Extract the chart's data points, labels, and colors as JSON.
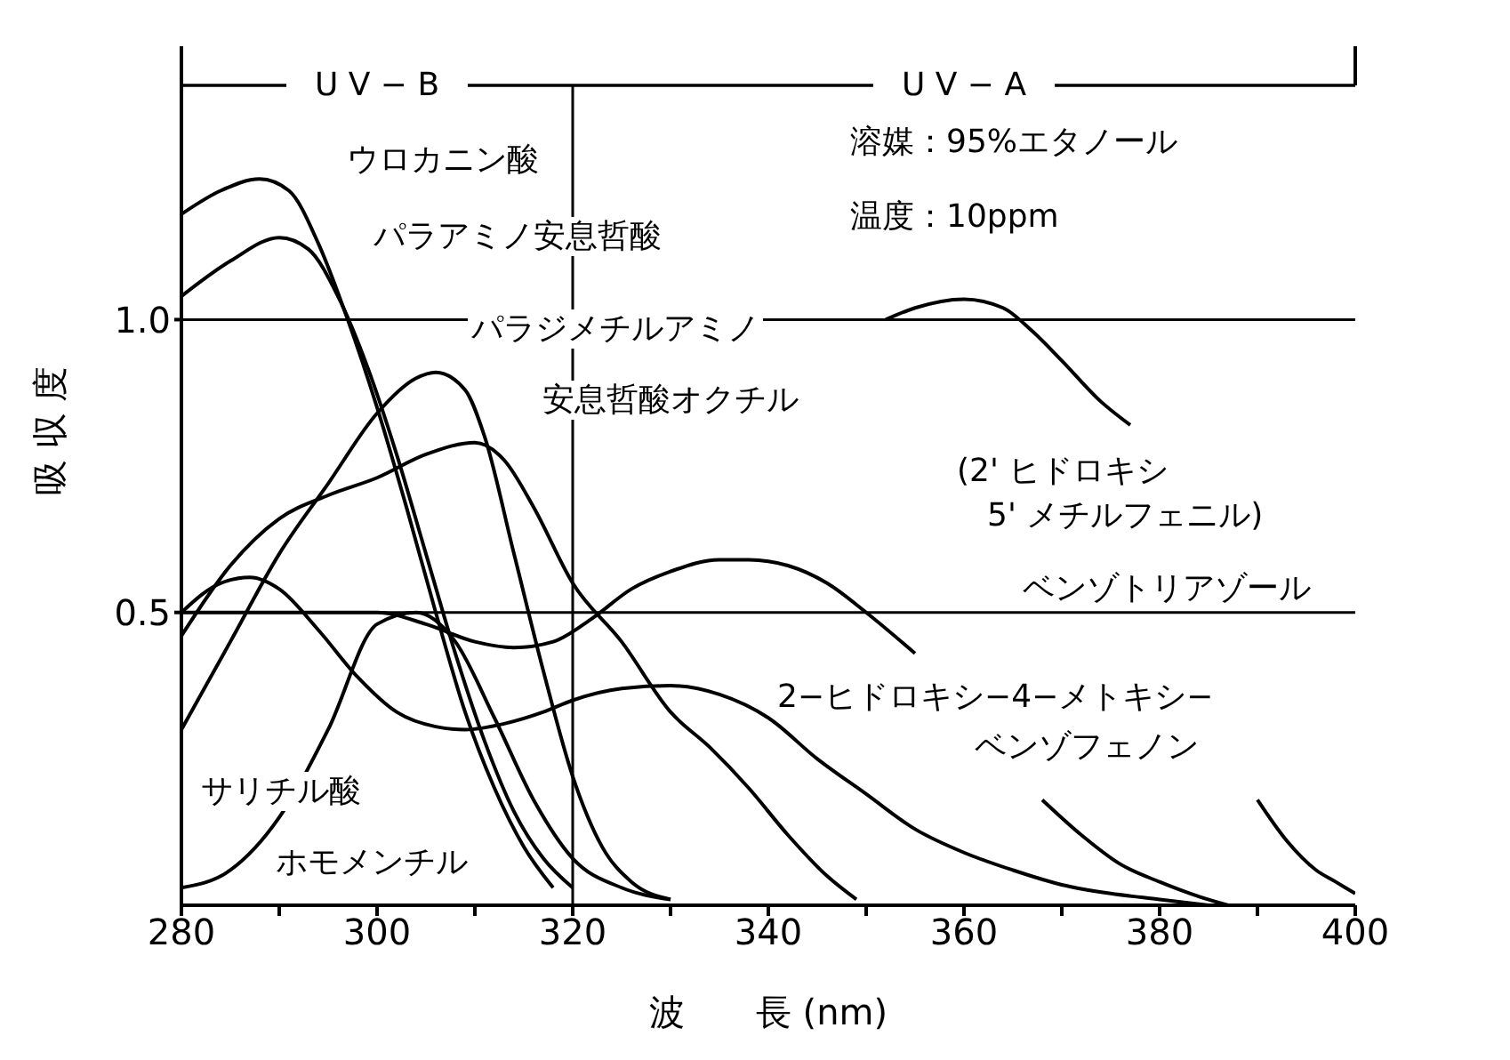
{
  "chart_data": {
    "type": "line",
    "xlabel": "波　　長 (nm)",
    "ylabel": "吸 収 度",
    "xlim": [
      280,
      400
    ],
    "ylim": [
      0,
      1.4
    ],
    "xticks": [
      280,
      {
        "value": 290,
        "label": null
      },
      300,
      {
        "value": 310,
        "label": null
      },
      320,
      {
        "value": 330,
        "label": null
      },
      340,
      {
        "value": 350,
        "label": null
      },
      360,
      {
        "value": 370,
        "label": null
      },
      380,
      {
        "value": 390,
        "label": null
      },
      400
    ],
    "yticks": [
      {
        "value": 0.5,
        "label": "0.5"
      },
      {
        "value": 1,
        "label": "1.0"
      }
    ],
    "grid": "y",
    "legend": false,
    "marker": "none",
    "line_style": "solid",
    "ref_lines": [
      {
        "axis": "x",
        "value": 320,
        "color": "#000000"
      }
    ],
    "series": [
      {
        "color": "#000000",
        "x": [
          280,
          284,
          288,
          291,
          294,
          297,
          300,
          303,
          306,
          309,
          312,
          315,
          318
        ],
        "values": [
          1.18,
          1.22,
          1.24,
          1.22,
          1.13,
          1.0,
          0.85,
          0.68,
          0.5,
          0.33,
          0.2,
          0.1,
          0.03
        ]
      },
      {
        "color": "#000000",
        "x": [
          280,
          285,
          290,
          293,
          296,
          299,
          302,
          305,
          308,
          311,
          314,
          317,
          320
        ],
        "values": [
          1.04,
          1.1,
          1.14,
          1.12,
          1.04,
          0.92,
          0.77,
          0.6,
          0.43,
          0.28,
          0.16,
          0.08,
          0.03
        ]
      },
      {
        "color": "#000000",
        "x": [
          280,
          285,
          290,
          295,
          300,
          304,
          306,
          309,
          311,
          314,
          317,
          320,
          323,
          326,
          330
        ],
        "values": [
          0.3,
          0.45,
          0.6,
          0.72,
          0.84,
          0.9,
          0.91,
          0.88,
          0.8,
          0.6,
          0.4,
          0.22,
          0.1,
          0.04,
          0.01
        ]
      },
      {
        "color": "#000000",
        "x": [
          280,
          285,
          290,
          295,
          300,
          305,
          310,
          313,
          316,
          320,
          325,
          330,
          334,
          338,
          342,
          346,
          349
        ],
        "values": [
          0.46,
          0.58,
          0.66,
          0.7,
          0.73,
          0.77,
          0.79,
          0.76,
          0.68,
          0.55,
          0.45,
          0.33,
          0.27,
          0.2,
          0.12,
          0.05,
          0.01
        ]
      },
      {
        "color": "#000000",
        "x": [
          280,
          290,
          300,
          305,
          310,
          314,
          318,
          322,
          326,
          330,
          335,
          338,
          342,
          346,
          350,
          355,
          360,
          368,
          372,
          376,
          380,
          384,
          387
        ],
        "values": [
          0.5,
          0.5,
          0.5,
          0.48,
          0.45,
          0.44,
          0.45,
          0.49,
          0.54,
          0.57,
          0.59,
          0.59,
          0.58,
          0.55,
          0.5,
          0.43,
          null,
          0.18,
          0.12,
          0.07,
          0.04,
          0.015,
          0
        ]
      },
      {
        "color": "#000000",
        "x": [
          352,
          355,
          360,
          364,
          367,
          370,
          374,
          377,
          383,
          390,
          393,
          396,
          398,
          400
        ],
        "values": [
          1.0,
          1.02,
          1.035,
          1.02,
          0.98,
          0.93,
          0.86,
          0.82,
          null,
          0.18,
          0.11,
          0.06,
          0.04,
          0.02
        ]
      },
      {
        "color": "#000000",
        "x": [
          280,
          284,
          287,
          290,
          294,
          298,
          302,
          306,
          309,
          313,
          317,
          320,
          325,
          330,
          335,
          340,
          345,
          350,
          355,
          360,
          365,
          370,
          375,
          380,
          385
        ],
        "values": [
          0.5,
          0.55,
          0.56,
          0.54,
          0.47,
          0.39,
          0.33,
          0.305,
          0.3,
          0.31,
          0.33,
          0.35,
          0.37,
          0.375,
          0.36,
          0.32,
          0.25,
          0.19,
          0.13,
          0.09,
          0.06,
          0.035,
          0.02,
          0.01,
          0
        ]
      },
      {
        "color": "#000000",
        "x": [
          280,
          285,
          290,
          295,
          300,
          304,
          308,
          312,
          316,
          320,
          325,
          330
        ],
        "values": [
          0.03,
          0.06,
          0.15,
          0.3,
          0.48,
          0.5,
          0.45,
          0.32,
          0.18,
          0.08,
          0.03,
          0.01
        ]
      }
    ],
    "annotations": [
      "U V − B",
      "U V − A",
      "ウロカニン酸",
      "パラアミノ安息哲酸",
      "パラジメチルアミノ",
      "安息哲酸オクチル",
      "溶媒：95%エタノール",
      "温度：10ppm",
      "(2' ヒドロキシ",
      "5' メチルフェニル)",
      "ベンゾトリアゾール",
      "2−ヒドロキシ−4−メトキシ−",
      "ベンゾフェノン",
      "サリチル酸",
      "ホモメンチル"
    ]
  }
}
